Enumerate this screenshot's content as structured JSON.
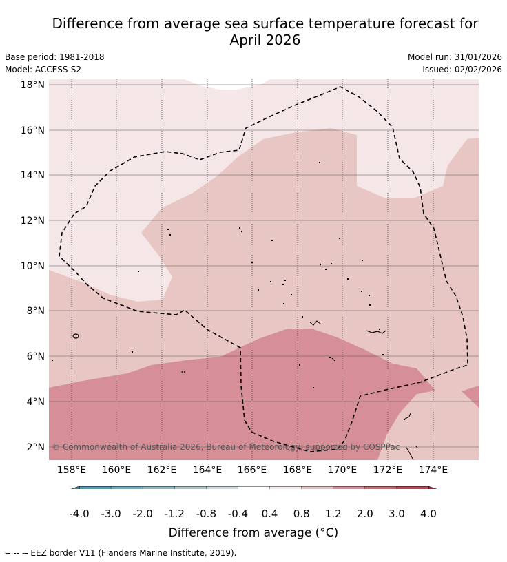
{
  "title_line1": "Difference from average sea surface temperature forecast for",
  "title_line2": "April 2026",
  "base_period": "Base period: 1981-2018",
  "model": "Model: ACCESS-S2",
  "model_run": "Model run: 31/01/2026",
  "issued": "Issued: 02/02/2026",
  "copyright": "© Commonwealth of Australia 2026, Bureau of Meteorology, supported by COSPPac",
  "lat_labels": [
    "2°N",
    "4°N",
    "6°N",
    "8°N",
    "10°N",
    "12°N",
    "14°N",
    "16°N",
    "18°N"
  ],
  "lon_labels": [
    "158°E",
    "160°E",
    "162°E",
    "164°E",
    "166°E",
    "168°E",
    "170°E",
    "172°E",
    "174°E"
  ],
  "colorbar": {
    "title": "Difference from average (°C)",
    "labels": [
      "-4.0",
      "-3.0",
      "-2.0",
      "-1.2",
      "-0.8",
      "-0.4",
      "0.4",
      "0.8",
      "1.2",
      "2.0",
      "3.0",
      "4.0"
    ],
    "colors": [
      "#41a0b5",
      "#6aadbd",
      "#8ab8c4",
      "#a8c6cc",
      "#c9d8db",
      "#ffffff",
      "#f5e7e7",
      "#e8c6c3",
      "#d68f97",
      "#cb6671",
      "#c24557"
    ],
    "under_color": "#3f808c",
    "over_color": "#b0223e"
  },
  "legend_note": "--  --  -- EEZ border V11 (Flanders Marine Institute, 2019)."
}
